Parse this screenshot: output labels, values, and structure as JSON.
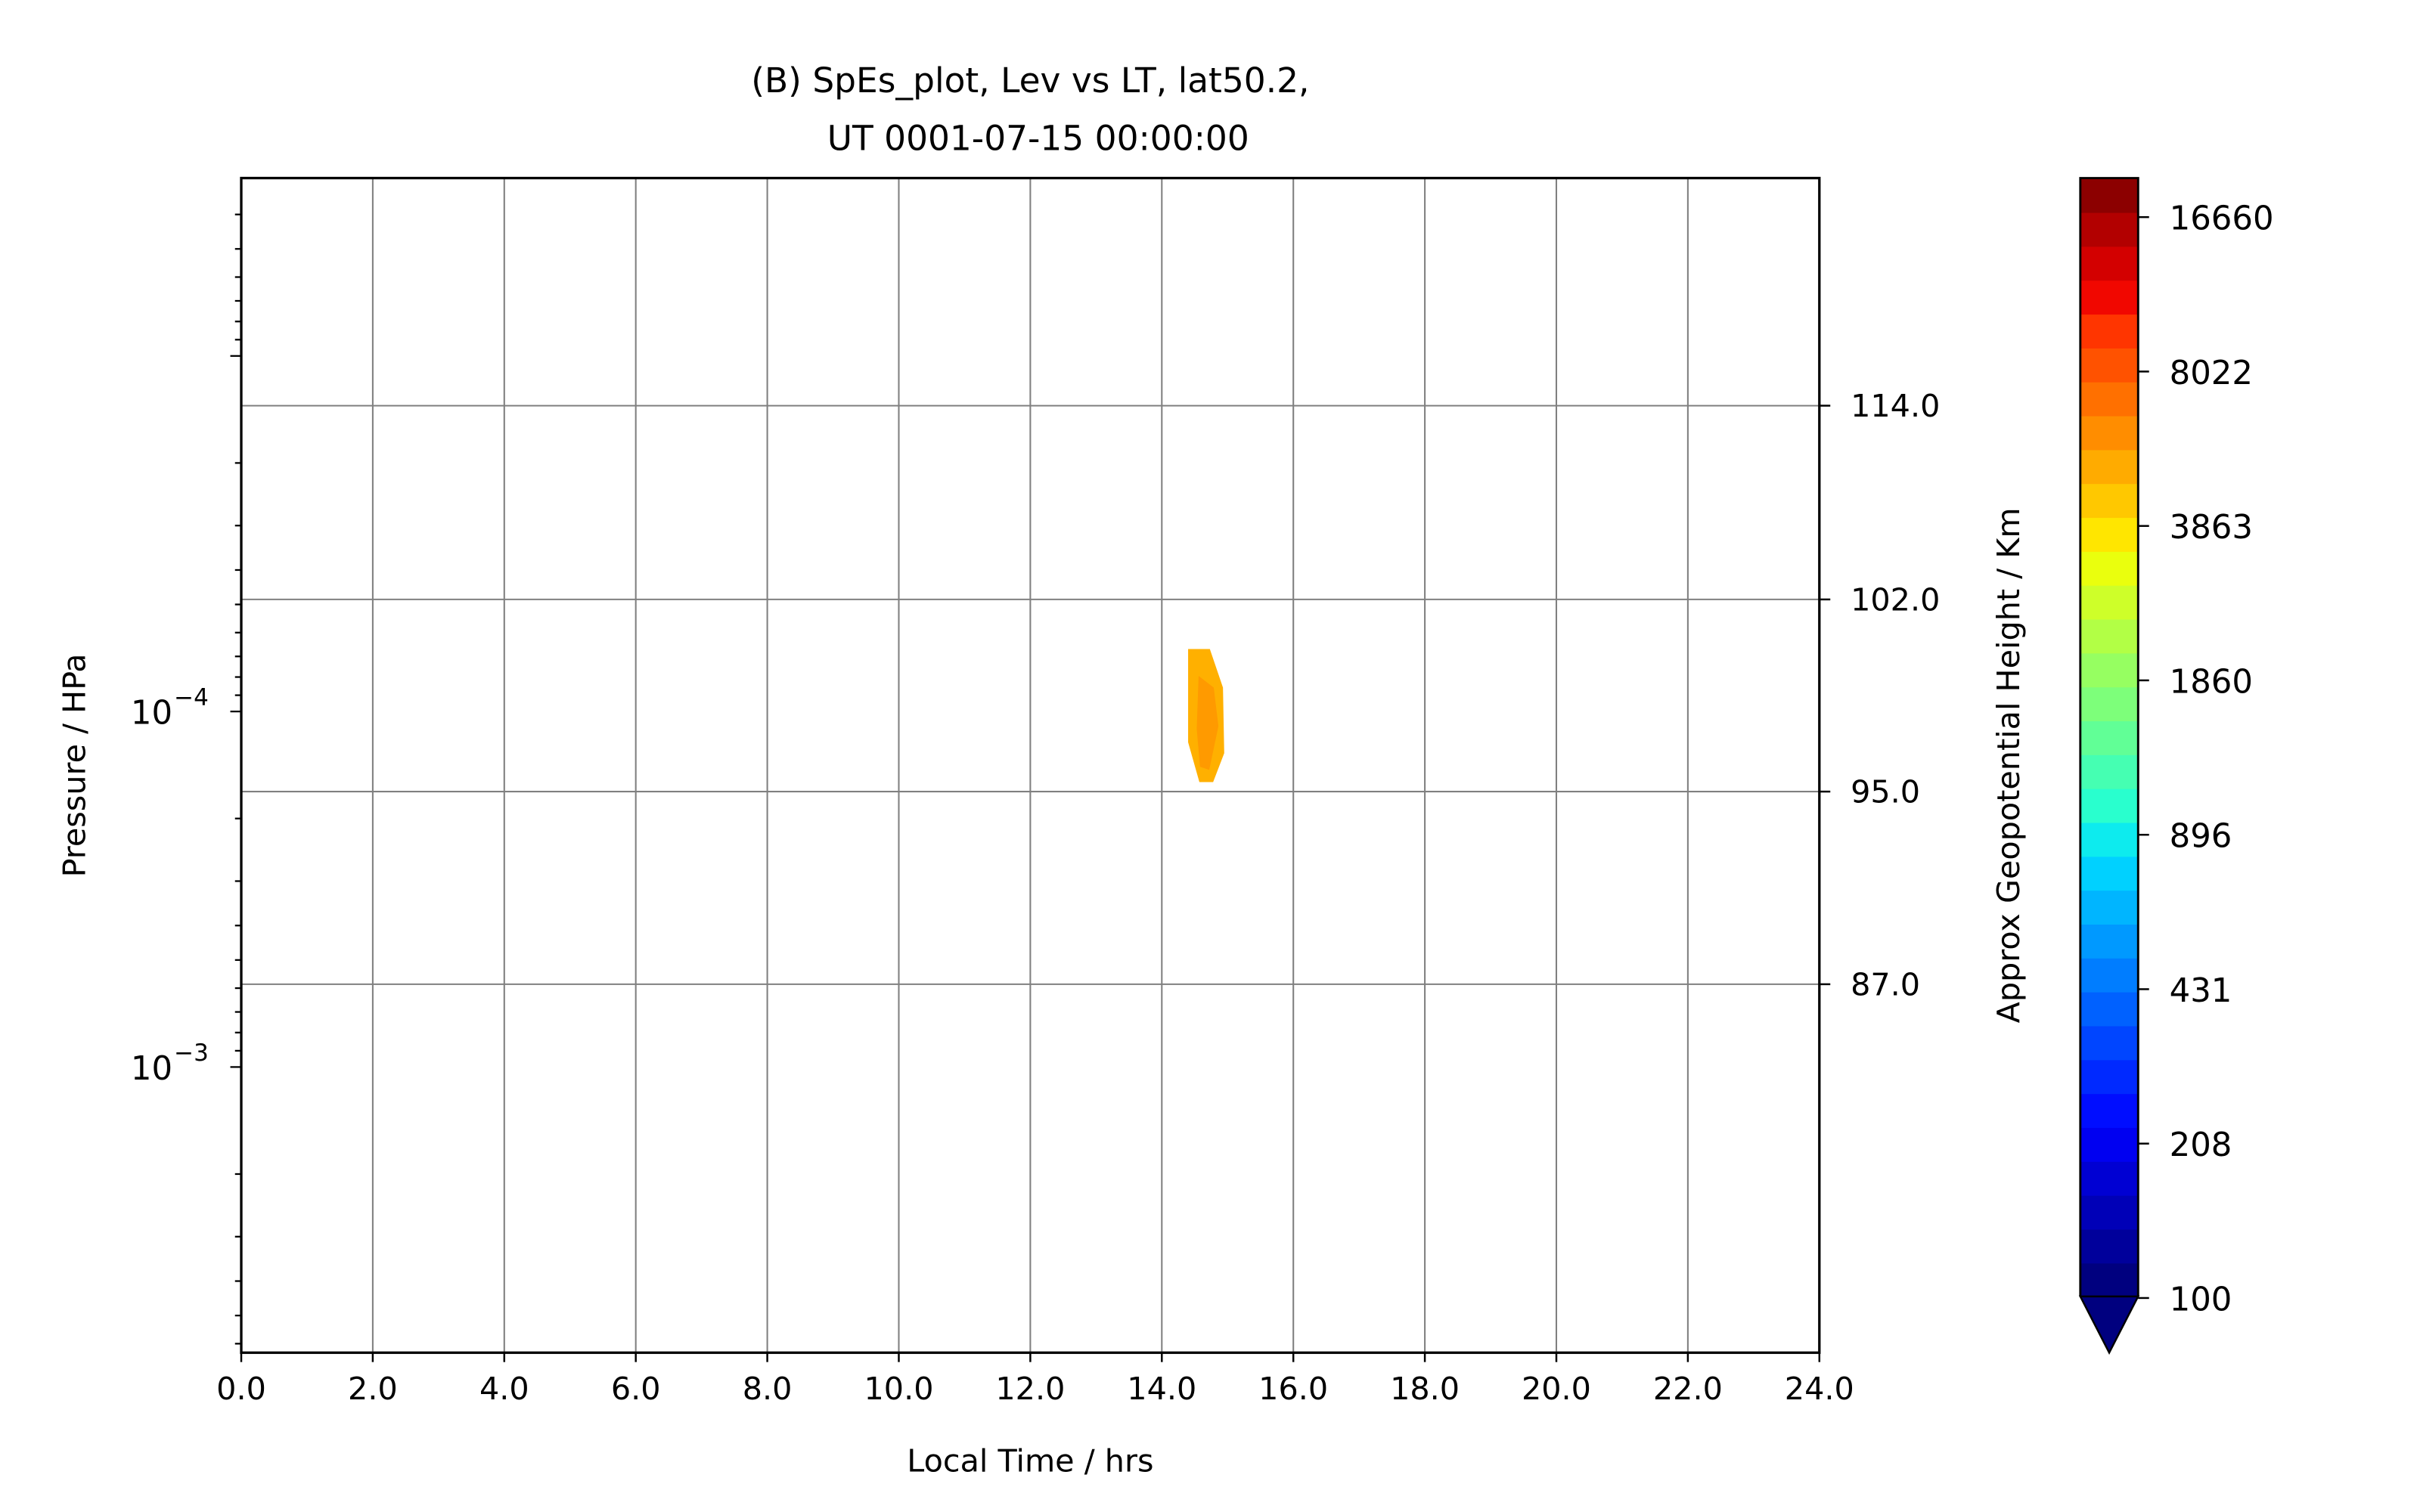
{
  "chart_data": {
    "type": "heatmap",
    "title_line1": "(B) SpEs_plot, Lev vs LT, lat50.2,",
    "title_line2": "UT 0001-07-15 00:00:00",
    "xlabel": "Local Time / hrs",
    "ylabel": "Pressure / HPa",
    "ylabel_right": "Approx Geopotential Height / Km",
    "x_ticks": [
      "0.0",
      "2.0",
      "4.0",
      "6.0",
      "8.0",
      "10.0",
      "12.0",
      "14.0",
      "16.0",
      "18.0",
      "20.0",
      "22.0",
      "24.0"
    ],
    "xlim": [
      0,
      24
    ],
    "y_scale": "log",
    "y_ticks": [
      {
        "base": "10",
        "exp": "−4",
        "value": 0.0001
      },
      {
        "base": "10",
        "exp": "−3",
        "value": 0.001
      }
    ],
    "ylim": [
      3.16e-06,
      0.00636
    ],
    "y_right_ticks": [
      {
        "label": "114.0",
        "pressure": 1.38e-05
      },
      {
        "label": "102.0",
        "pressure": 4.84e-05
      },
      {
        "label": "95.0",
        "pressure": 0.000168
      },
      {
        "label": "87.0",
        "pressure": 0.000585
      }
    ],
    "grid": true,
    "colorbar": {
      "ticks": [
        "16660",
        "8022",
        "3863",
        "1860",
        "896",
        "431",
        "208",
        "100"
      ],
      "extend": "min",
      "colors": [
        "#00007f",
        "#00009b",
        "#0000b7",
        "#0000d3",
        "#0000f1",
        "#000dff",
        "#0029ff",
        "#0045ff",
        "#0061ff",
        "#007dff",
        "#0099ff",
        "#00b5ff",
        "#00d1ff",
        "#0debee",
        "#29ffce",
        "#45ffb2",
        "#61ff96",
        "#7dff7a",
        "#96ff61",
        "#b2ff45",
        "#ceff29",
        "#eaff0d",
        "#ffe600",
        "#ffc800",
        "#ffab00",
        "#ff8d00",
        "#ff7000",
        "#ff5200",
        "#ff3500",
        "#f10700",
        "#d30000",
        "#b20000",
        "#8c0000"
      ]
    },
    "contours": [
      {
        "level_color": "#ffb000",
        "points": [
          [
            14.4,
            6.67e-05
          ],
          [
            14.73,
            6.67e-05
          ],
          [
            14.93,
            8.57e-05
          ],
          [
            14.95,
            0.000131
          ],
          [
            14.78,
            0.000158
          ],
          [
            14.57,
            0.000158
          ],
          [
            14.4,
            0.000122
          ]
        ]
      },
      {
        "level_color": "#ff9a00",
        "points": [
          [
            14.56,
            7.94e-05
          ],
          [
            14.79,
            8.57e-05
          ],
          [
            14.86,
            0.00011
          ],
          [
            14.72,
            0.000146
          ],
          [
            14.58,
            0.000143
          ],
          [
            14.53,
            0.000112
          ]
        ]
      }
    ]
  }
}
